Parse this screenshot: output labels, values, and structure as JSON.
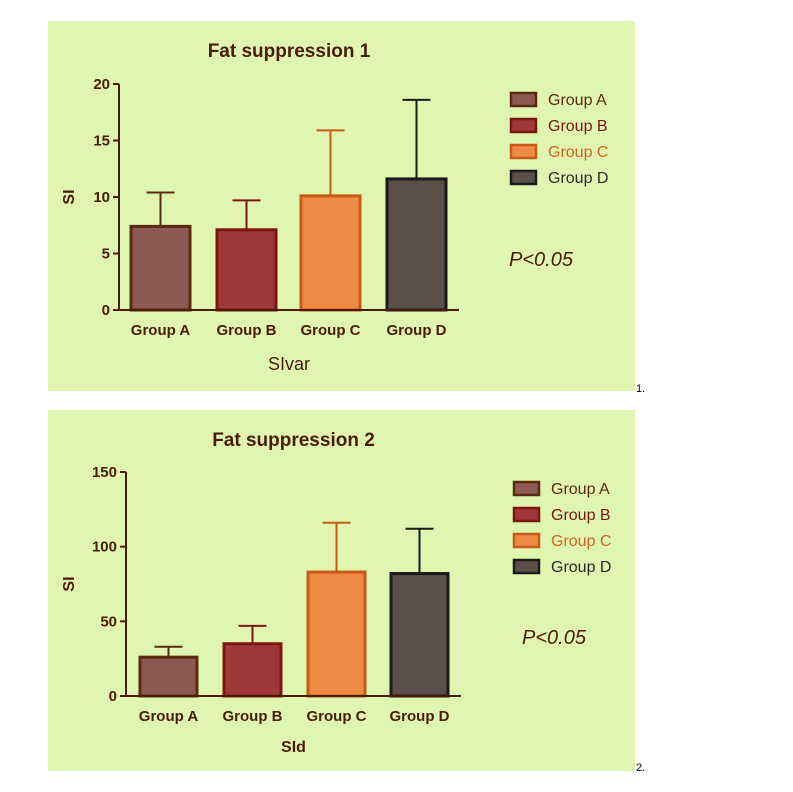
{
  "colors": {
    "background": "#e0f6b0",
    "text": "#4a1c08",
    "axis": "#4a1c08"
  },
  "chart_data": [
    {
      "type": "bar",
      "title": "Fat suppression 1",
      "xlabel": "SIvar",
      "ylabel": "SI",
      "ylim": [
        0,
        20
      ],
      "yticks": [
        0,
        5,
        10,
        15,
        20
      ],
      "grid": false,
      "legend": "top-right",
      "categories": [
        "Group A",
        "Group B",
        "Group C",
        "Group D"
      ],
      "values": [
        7.4,
        7.1,
        10.1,
        11.6
      ],
      "error_upper": [
        10.4,
        9.7,
        15.9,
        18.6
      ],
      "bar_colors": [
        "#8c5a52",
        "#a0373a",
        "#ef8a45",
        "#5a5048"
      ],
      "edge_colors": [
        "#5a2a10",
        "#7a1810",
        "#c85a18",
        "#1a1a1a"
      ],
      "legend_text_colors": [
        "#5a2a10",
        "#7a1810",
        "#d06420",
        "#2a2a2a"
      ],
      "annotation": "P<0.05",
      "figure_label": "1."
    },
    {
      "type": "bar",
      "title": "Fat suppression 2",
      "xlabel": "SId",
      "ylabel": "SI",
      "ylim": [
        0,
        150
      ],
      "yticks": [
        0,
        50,
        100,
        150
      ],
      "grid": false,
      "legend": "top-right",
      "categories": [
        "Group A",
        "Group B",
        "Group C",
        "Group D"
      ],
      "values": [
        26,
        35,
        83,
        82
      ],
      "error_upper": [
        33,
        47,
        116,
        112
      ],
      "bar_colors": [
        "#8c5a52",
        "#a0373a",
        "#ef8a45",
        "#5a5048"
      ],
      "edge_colors": [
        "#5a2a10",
        "#7a1810",
        "#c85a18",
        "#1a1a1a"
      ],
      "legend_text_colors": [
        "#5a2a10",
        "#7a1810",
        "#d06420",
        "#2a2a2a"
      ],
      "annotation": "P<0.05",
      "figure_label": "2."
    }
  ]
}
